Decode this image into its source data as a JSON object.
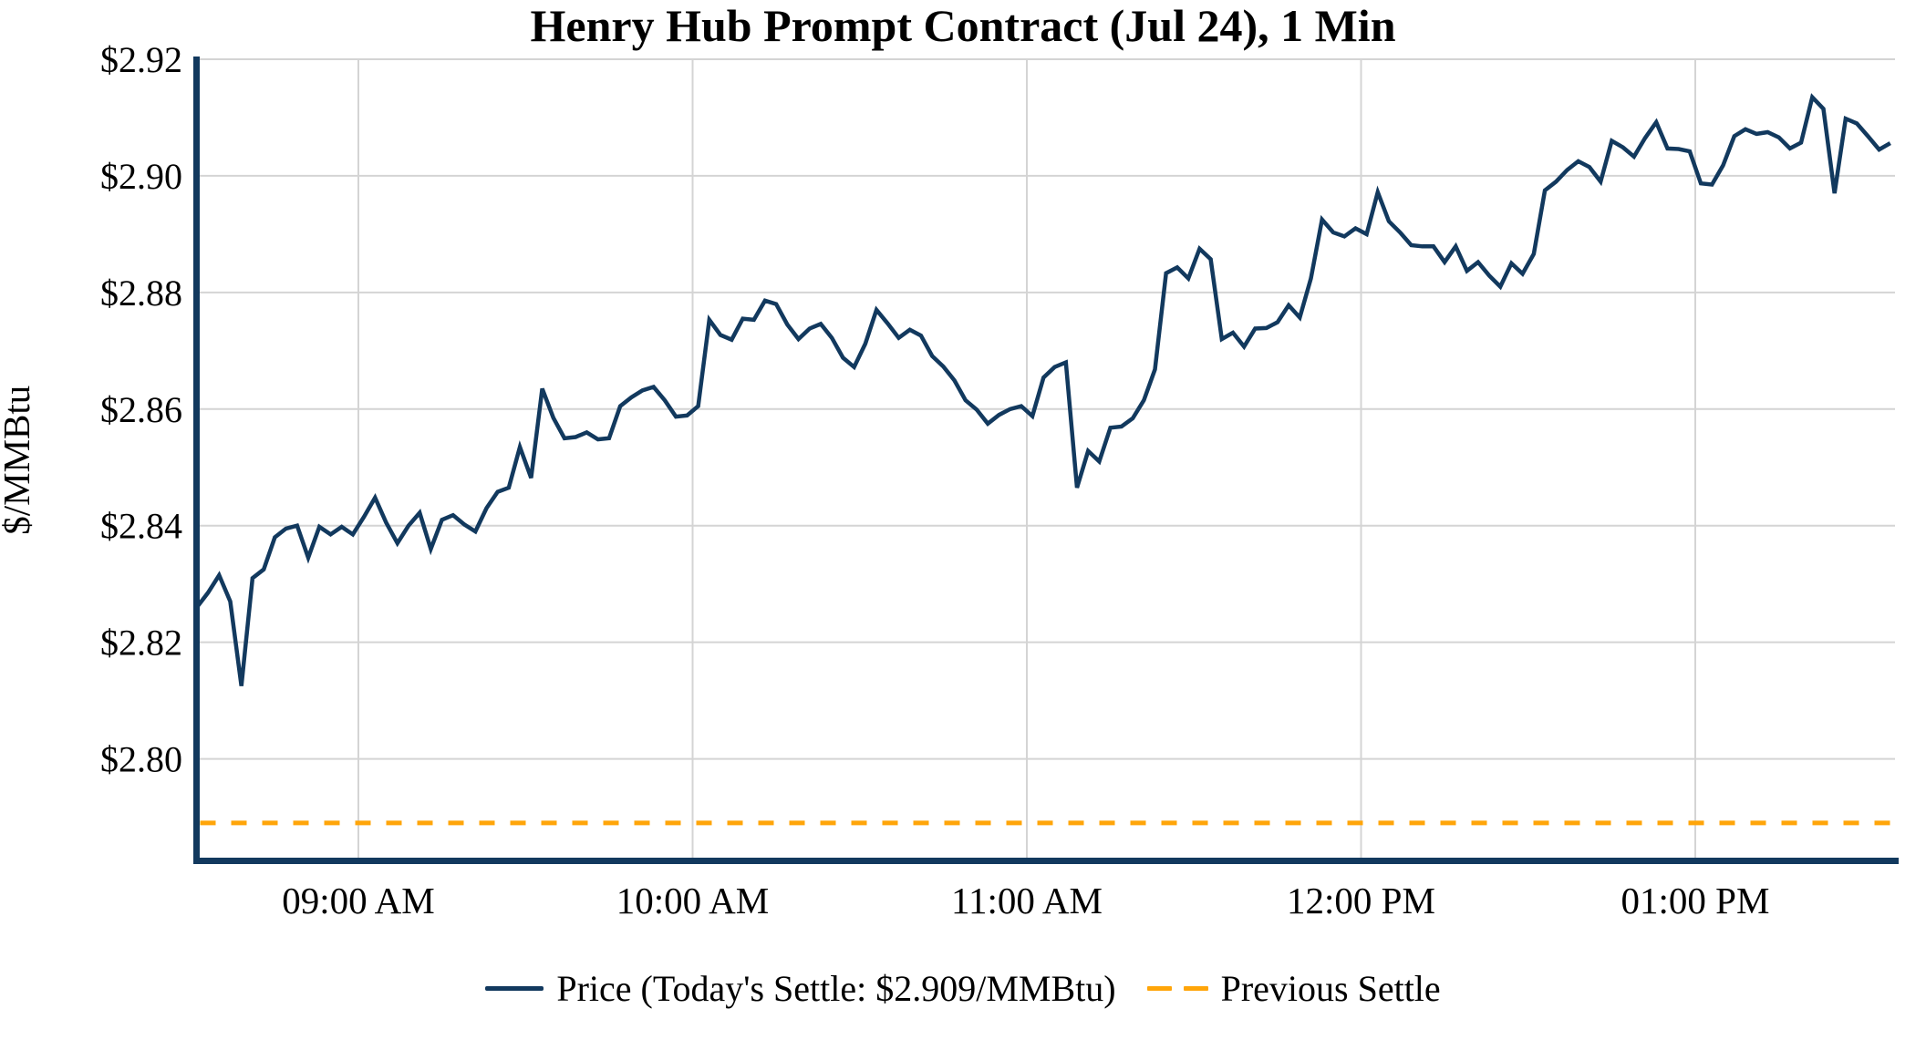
{
  "figure": {
    "title": "Henry Hub Prompt Contract (Jul 24), 1 Min",
    "y_axis_label": "$/MMBtu"
  },
  "legend": {
    "price_label": "Price (Today's Settle: $2.909/MMBtu)",
    "previous_settle_label": "Previous Settle"
  },
  "colors": {
    "price_line": "#12395e",
    "axis_spine": "#12395e",
    "previous_settle_line": "#ffa509",
    "gridline": "#d4d4d4",
    "background": "#ffffff",
    "text": "#000000"
  },
  "chart_data": {
    "type": "line",
    "title": "Henry Hub Prompt Contract (Jul 24), 1 Min",
    "xlabel": "",
    "ylabel": "$/MMBtu",
    "grid": true,
    "legend_position": "bottom-center",
    "ylim": [
      2.7825,
      2.92
    ],
    "y_ticks": [
      {
        "label": "$2.80",
        "value": 2.8
      },
      {
        "label": "$2.82",
        "value": 2.82
      },
      {
        "label": "$2.84",
        "value": 2.84
      },
      {
        "label": "$2.86",
        "value": 2.86
      },
      {
        "label": "$2.88",
        "value": 2.88
      },
      {
        "label": "$2.90",
        "value": 2.9
      },
      {
        "label": "$2.92",
        "value": 2.92
      }
    ],
    "x_ticks": [
      {
        "label": "09:00 AM",
        "time": "09:00"
      },
      {
        "label": "10:00 AM",
        "time": "10:00"
      },
      {
        "label": "11:00 AM",
        "time": "11:00"
      },
      {
        "label": "12:00 PM",
        "time": "12:00"
      },
      {
        "label": "01:00 PM",
        "time": "13:00"
      }
    ],
    "today_settle": 2.909,
    "series": [
      {
        "name": "Price (Today's Settle: $2.909/MMBtu)",
        "style": "solid",
        "time_start": "08:31",
        "time_step_minutes": 2,
        "time_end": "13:35",
        "values": [
          2.826,
          2.8285,
          2.8315,
          2.827,
          2.8125,
          2.831,
          2.8325,
          2.838,
          2.8395,
          2.84,
          2.8345,
          2.8398,
          2.8385,
          2.8398,
          2.8385,
          2.8415,
          2.8448,
          2.8405,
          2.837,
          2.84,
          2.8422,
          2.836,
          2.841,
          2.8418,
          2.8402,
          2.839,
          2.843,
          2.8458,
          2.8465,
          2.8535,
          2.8482,
          2.8635,
          2.8585,
          2.855,
          2.8552,
          2.856,
          2.8548,
          2.855,
          2.8605,
          2.862,
          2.8632,
          2.8638,
          2.8615,
          2.8587,
          2.8589,
          2.8605,
          2.8753,
          2.8727,
          2.8719,
          2.8755,
          2.8753,
          2.8786,
          2.878,
          2.8745,
          2.872,
          2.8738,
          2.8746,
          2.8722,
          2.8688,
          2.8672,
          2.8712,
          2.877,
          2.8747,
          2.8722,
          2.8736,
          2.8726,
          2.8691,
          2.8673,
          2.8649,
          2.8615,
          2.8599,
          2.8575,
          2.859,
          2.86,
          2.8605,
          2.8588,
          2.8654,
          2.8672,
          2.868,
          2.8465,
          2.8528,
          2.851,
          2.8568,
          2.857,
          2.8584,
          2.8615,
          2.8668,
          2.8833,
          2.8843,
          2.8824,
          2.8875,
          2.8857,
          2.872,
          2.8731,
          2.8707,
          2.8738,
          2.8739,
          2.8749,
          2.8778,
          2.8757,
          2.8824,
          2.8925,
          2.8903,
          2.8896,
          2.891,
          2.89,
          2.8972,
          2.8922,
          2.8903,
          2.8881,
          2.8879,
          2.8879,
          2.8852,
          2.8879,
          2.8837,
          2.8852,
          2.8829,
          2.881,
          2.885,
          2.8832,
          2.8866,
          2.8975,
          2.899,
          2.901,
          2.9025,
          2.9015,
          2.899,
          2.906,
          2.9049,
          2.9033,
          2.9065,
          2.9092,
          2.9047,
          2.9046,
          2.9042,
          2.8987,
          2.8985,
          2.9018,
          2.9068,
          2.908,
          2.9072,
          2.9075,
          2.9066,
          2.9047,
          2.9057,
          2.9135,
          2.9115,
          2.897,
          2.9098,
          2.909,
          2.9068,
          2.9045,
          2.9056
        ]
      },
      {
        "name": "Previous Settle",
        "style": "dashed",
        "type": "constant",
        "value": 2.789
      }
    ]
  }
}
